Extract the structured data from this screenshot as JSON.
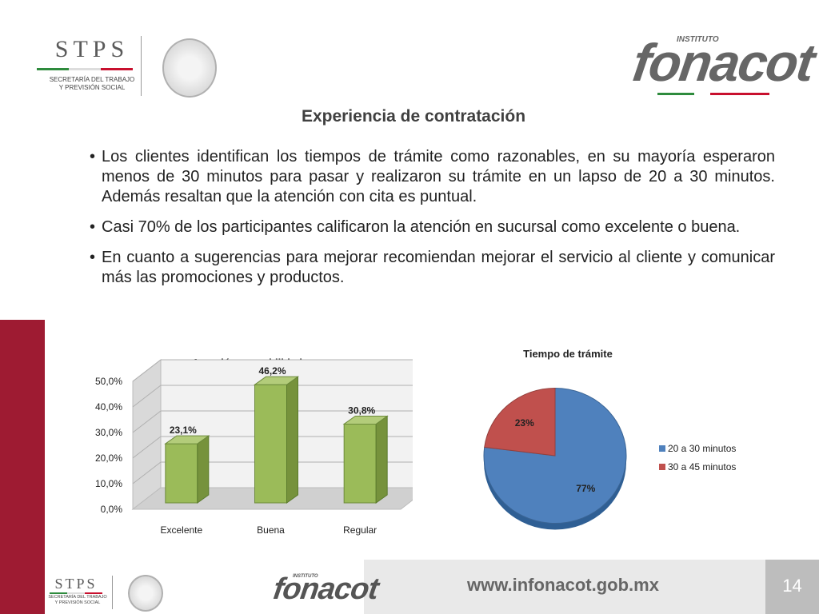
{
  "header": {
    "stps_logo": "STPS",
    "stps_subtitle_line1": "SECRETARÍA DEL TRABAJO",
    "stps_subtitle_line2": "Y PREVISIÓN SOCIAL",
    "fonacot_label_small": "INSTITUTO",
    "fonacot_logo": "fonacot"
  },
  "page_title": "Experiencia de contratación",
  "bullets": [
    "Los clientes identifican los tiempos de trámite como razonables, en su mayoría esperaron menos de 30 minutos para pasar y realizaron su trámite en un lapso de 20 a 30 minutos. Además resaltan que la atención con cita es puntual.",
    "Casi 70% de los participantes calificaron la atención en sucursal como excelente o buena.",
    "En cuanto a sugerencias para mejorar recomiendan mejorar el servicio al cliente y comunicar más las promociones y productos."
  ],
  "colors": {
    "accent_red": "#9e1b32",
    "bar_green": "#9bbb59",
    "pie_blue": "#4f81bd",
    "pie_red": "#c0504d",
    "flag_green": "#2e8b3d",
    "flag_red": "#c8102e"
  },
  "chart_data": [
    {
      "type": "bar",
      "title": "Atención y amabilidad",
      "categories": [
        "Excelente",
        "Buena",
        "Regular"
      ],
      "values": [
        23.1,
        46.2,
        30.8
      ],
      "data_labels": [
        "23,1%",
        "46,2%",
        "30,8%"
      ],
      "y_ticks": [
        "0,0%",
        "10,0%",
        "20,0%",
        "30,0%",
        "40,0%",
        "50,0%"
      ],
      "ylim": [
        0,
        50
      ],
      "grid": true,
      "style": "3d"
    },
    {
      "type": "pie",
      "title": "Tiempo de trámite",
      "series": [
        {
          "name": "20 a 30 minutos",
          "value": 77,
          "label": "77%"
        },
        {
          "name": "30 a 45 minutos",
          "value": 23,
          "label": "23%"
        }
      ],
      "legend": "right",
      "style": "3d"
    }
  ],
  "footer": {
    "url": "www.infonacot.gob.mx",
    "page_number": "14",
    "stps_logo": "STPS",
    "stps_subtitle_line1": "SECRETARÍA DEL TRABAJO",
    "stps_subtitle_line2": "Y PREVISIÓN SOCIAL",
    "fonacot_label_small": "INSTITUTO",
    "fonacot_logo": "fonacot"
  }
}
